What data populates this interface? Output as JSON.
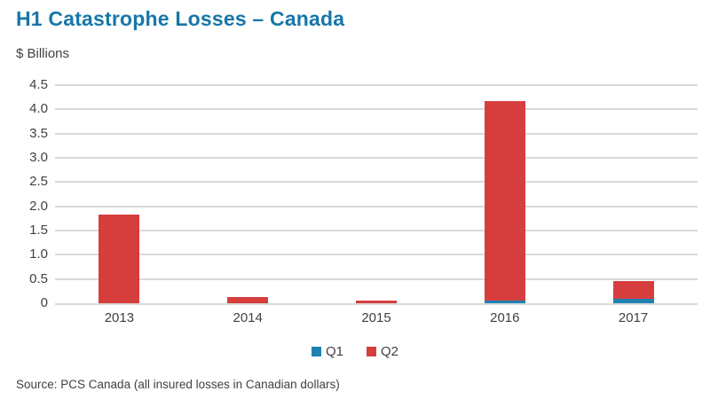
{
  "header": {
    "title": "H1 Catastrophe Losses – Canada",
    "unit_label": "$ Billions"
  },
  "chart_data": {
    "type": "bar",
    "stacked": true,
    "title": "H1 Catastrophe Losses – Canada",
    "xlabel": "",
    "ylabel": "$ Billions",
    "categories": [
      "2013",
      "2014",
      "2015",
      "2016",
      "2017"
    ],
    "series": [
      {
        "name": "Q1",
        "color": "#1f81b2",
        "values": [
          0,
          0,
          0,
          0.05,
          0.1
        ]
      },
      {
        "name": "Q2",
        "color": "#d63e3e",
        "values": [
          1.83,
          0.13,
          0.05,
          4.13,
          0.35
        ]
      }
    ],
    "ylim": [
      0,
      4.5
    ],
    "yticks": [
      0,
      0.5,
      1.0,
      1.5,
      2.0,
      2.5,
      3.0,
      3.5,
      4.0,
      4.5
    ],
    "ytick_labels": [
      "0",
      "0.5",
      "1.0",
      "1.5",
      "2.0",
      "2.5",
      "3.0",
      "3.5",
      "4.0",
      "4.5"
    ],
    "grid": true,
    "legend_position": "bottom"
  },
  "footer": {
    "source": "Source: PCS Canada (all insured losses in Canadian dollars)"
  }
}
